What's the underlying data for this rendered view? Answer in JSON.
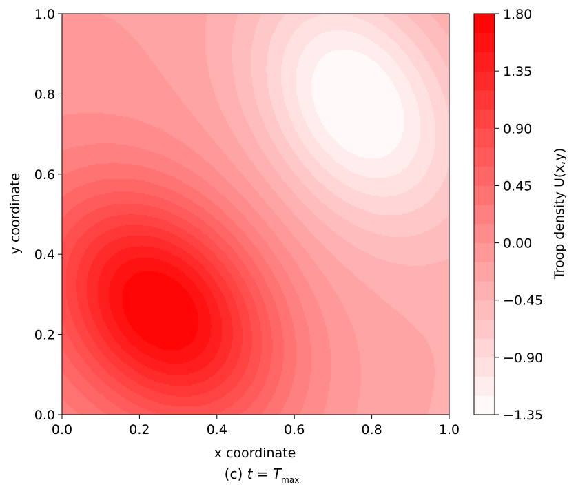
{
  "chart_data": {
    "type": "heatmap",
    "subtype": "filled-contour",
    "xlabel": "x coordinate",
    "ylabel": "y coordinate",
    "xlim": [
      0.0,
      1.0
    ],
    "ylim": [
      0.0,
      1.0
    ],
    "x_ticks": [
      "0.0",
      "0.2",
      "0.4",
      "0.6",
      "0.8",
      "1.0"
    ],
    "y_ticks": [
      "0.0",
      "0.2",
      "0.4",
      "0.6",
      "0.8",
      "1.0"
    ],
    "colorbar": {
      "label": "Troop density U(x,y)",
      "range": [
        -1.35,
        1.8
      ],
      "levels": 21,
      "colormap": [
        "#ffffff",
        "#ff0000"
      ],
      "ticks": [
        "1.80",
        "1.35",
        "0.90",
        "0.45",
        "0.00",
        "−0.45",
        "−0.90",
        "−1.35"
      ],
      "tick_values": [
        1.8,
        1.35,
        0.9,
        0.45,
        0.0,
        -0.45,
        -0.9,
        -1.35
      ]
    },
    "features": [
      {
        "kind": "maximum",
        "x": 0.26,
        "y": 0.26,
        "value": 1.75
      },
      {
        "kind": "minimum",
        "x": 0.76,
        "y": 0.78,
        "value": -1.3
      }
    ],
    "grid": false
  },
  "caption": {
    "prefix": "(c) ",
    "var": "t",
    "eq": " = ",
    "sym": "T",
    "sub": "max"
  }
}
